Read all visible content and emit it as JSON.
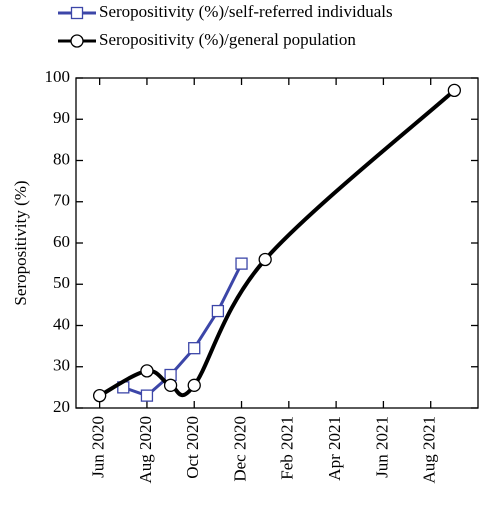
{
  "chart_data": {
    "type": "line",
    "y_label": "Seropositivity (%)",
    "xlim": [
      "2020-05",
      "2021-10"
    ],
    "xticks": [
      {
        "value": "2020-06",
        "label": "Jun 2020"
      },
      {
        "value": "2020-08",
        "label": "Aug 2020"
      },
      {
        "value": "2020-10",
        "label": "Oct 2020"
      },
      {
        "value": "2020-12",
        "label": "Dec 2020"
      },
      {
        "value": "2021-02",
        "label": "Feb 2021"
      },
      {
        "value": "2021-04",
        "label": "Apr 2021"
      },
      {
        "value": "2021-06",
        "label": "Jun 2021"
      },
      {
        "value": "2021-08",
        "label": "Aug 2021"
      }
    ],
    "ylim": [
      20,
      100
    ],
    "yticks": [
      20,
      30,
      40,
      50,
      60,
      70,
      80,
      90,
      100
    ],
    "series": [
      {
        "name": "Seropositivity (%)/self-referred individuals",
        "color": "#3c46a8",
        "marker": "square",
        "smooth": false,
        "x": [
          "2020-07",
          "2020-08",
          "2020-09",
          "2020-10",
          "2020-11",
          "2020-12"
        ],
        "values": [
          25,
          23,
          28,
          34.5,
          43.5,
          55
        ]
      },
      {
        "name": "Seropositivity (%)/general population",
        "color": "#000000",
        "marker": "circle",
        "smooth": true,
        "x": [
          "2020-06",
          "2020-08",
          "2020-09",
          "2020-10",
          "2021-01",
          "2021-09"
        ],
        "values": [
          23,
          29,
          25.5,
          25.5,
          56,
          97
        ]
      }
    ]
  }
}
